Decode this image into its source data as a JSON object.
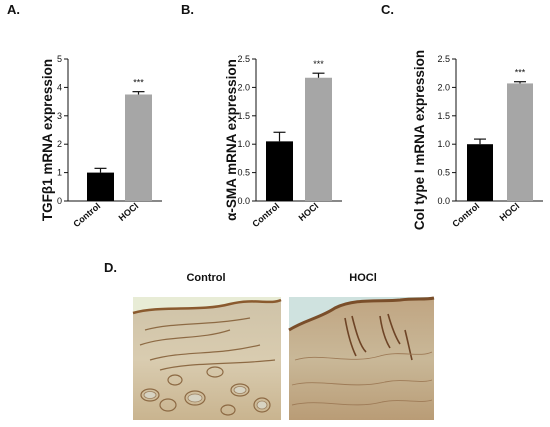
{
  "figure": {
    "panel_d_letter": "D.",
    "histology": {
      "left_label": "Control",
      "right_label": "HOCl",
      "image_description_icon": "tissue-micrograph"
    }
  },
  "chart_data": [
    {
      "type": "bar",
      "panel": "A.",
      "categories": [
        "Control",
        "HOCl"
      ],
      "values": [
        1.0,
        3.75
      ],
      "errors": [
        0.15,
        0.1
      ],
      "significance": [
        "",
        "***"
      ],
      "ylabel": "TGFβ1 mRNA  expression",
      "ylim": [
        0,
        5
      ],
      "yticks": [
        0,
        1,
        2,
        3,
        4,
        5
      ],
      "ytick_labels": [
        "0",
        "1",
        "2",
        "3",
        "4",
        "5"
      ],
      "colors": [
        "#000000",
        "#a6a6a6"
      ]
    },
    {
      "type": "bar",
      "panel": "B.",
      "categories": [
        "Control",
        "HOCl"
      ],
      "values": [
        1.05,
        2.17
      ],
      "errors": [
        0.16,
        0.08
      ],
      "significance": [
        "",
        "***"
      ],
      "ylabel": "α-SMA mRNA expression",
      "ylim": [
        0,
        2.5
      ],
      "yticks": [
        0,
        0.5,
        1,
        1.5,
        2,
        2.5
      ],
      "ytick_labels": [
        "0.0",
        "0.5",
        "1.0",
        "1.5",
        "2.0",
        "2.5"
      ],
      "colors": [
        "#000000",
        "#a6a6a6"
      ]
    },
    {
      "type": "bar",
      "panel": "C.",
      "categories": [
        "Control",
        "HOCl"
      ],
      "values": [
        1.0,
        2.07
      ],
      "errors": [
        0.09,
        0.03
      ],
      "significance": [
        "",
        "***"
      ],
      "ylabel": "Col type I mRNA expression",
      "ylim": [
        0,
        2.5
      ],
      "yticks": [
        0,
        0.5,
        1,
        1.5,
        2,
        2.5
      ],
      "ytick_labels": [
        "0.0",
        "0.5",
        "1.0",
        "1.5",
        "2.0",
        "2.5"
      ],
      "colors": [
        "#000000",
        "#a6a6a6"
      ]
    }
  ]
}
